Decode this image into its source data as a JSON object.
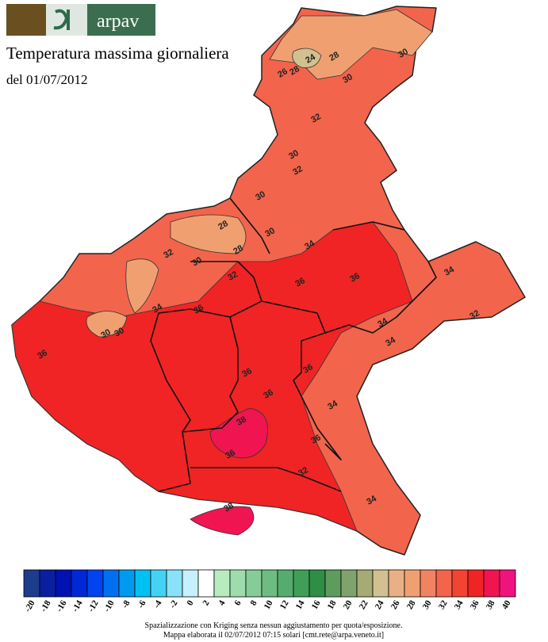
{
  "header": {
    "logo_text": "arpav",
    "title": "Temperatura massima giornaliera",
    "subtitle": "del 01/07/2012"
  },
  "contour_labels": [
    "24",
    "28",
    "30",
    "26",
    "28",
    "30",
    "32",
    "30",
    "32",
    "30",
    "28",
    "30",
    "32",
    "28",
    "30",
    "32",
    "34",
    "36",
    "36",
    "34",
    "34",
    "32",
    "36",
    "30",
    "34",
    "30",
    "36",
    "36",
    "36",
    "38",
    "36",
    "36",
    "34",
    "32",
    "34",
    "36",
    "34",
    "38"
  ],
  "legend": {
    "labels": [
      "-20",
      "-18",
      "-16",
      "-14",
      "-12",
      "-10",
      "-8",
      "-6",
      "-4",
      "-2",
      "0",
      "2",
      "4",
      "6",
      "8",
      "10",
      "12",
      "14",
      "16",
      "18",
      "20",
      "22",
      "24",
      "26",
      "28",
      "30",
      "32",
      "34",
      "36",
      "38",
      "40"
    ],
    "colors": [
      "#1c3c8c",
      "#0a1ea0",
      "#0012b4",
      "#0028d4",
      "#0044f0",
      "#0070f0",
      "#0099f0",
      "#00c2f2",
      "#44d2f4",
      "#88e2f8",
      "#c6f0fb",
      "#ffffff",
      "#b8ecbe",
      "#9edcae",
      "#86cc98",
      "#6ebc82",
      "#56ac6e",
      "#409e58",
      "#2e8e46",
      "#5e9c5e",
      "#80a26c",
      "#a6aa74",
      "#d2c090",
      "#e8b084",
      "#f0a070",
      "#f08462",
      "#f2644c",
      "#f24432",
      "#f02424",
      "#f01450",
      "#f0127e"
    ]
  },
  "footer": {
    "line1": "Spazializzazione con Kriging senza nessun aggiustamento per quota/esposizione.",
    "line2": "Mappa elaborata il 02/07/2012 07:15 solari [cmt.rete@arpa.veneto.it]"
  }
}
